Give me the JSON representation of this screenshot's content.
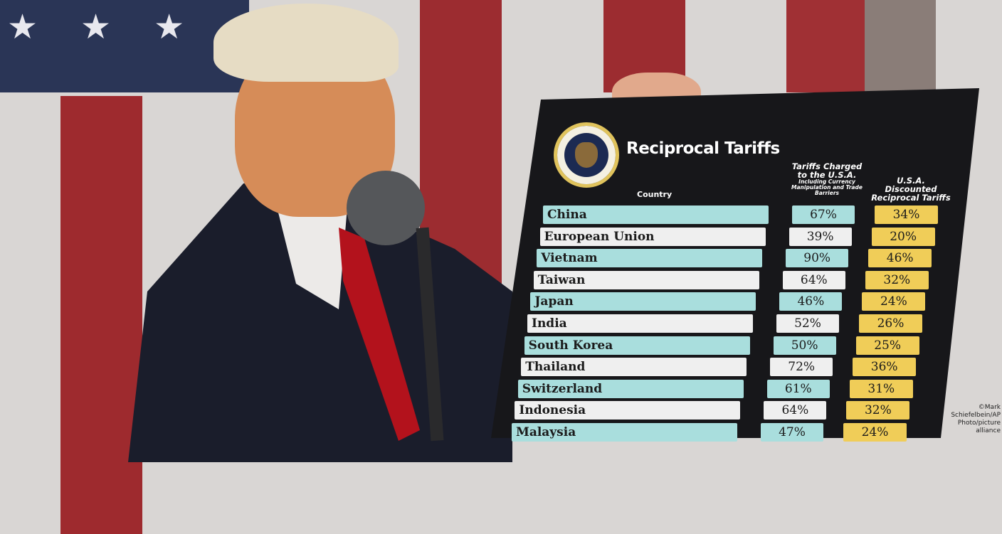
{
  "board": {
    "title": "Reciprocal Tariffs",
    "seal_text": "SEAL OF THE PRESIDENT OF THE UNITED STATES",
    "col_country": "Country",
    "col_charged": "Tariffs Charged to the U.S.A.",
    "col_charged_sub": "Including Currency Manipulation and Trade Barriers",
    "col_reciprocal": "U.S.A. Discounted Reciprocal Tariffs",
    "rows": [
      {
        "country": "China",
        "charged": "67%",
        "reciprocal": "34%"
      },
      {
        "country": "European Union",
        "charged": "39%",
        "reciprocal": "20%"
      },
      {
        "country": "Vietnam",
        "charged": "90%",
        "reciprocal": "46%"
      },
      {
        "country": "Taiwan",
        "charged": "64%",
        "reciprocal": "32%"
      },
      {
        "country": "Japan",
        "charged": "46%",
        "reciprocal": "24%"
      },
      {
        "country": "India",
        "charged": "52%",
        "reciprocal": "26%"
      },
      {
        "country": "South Korea",
        "charged": "50%",
        "reciprocal": "25%"
      },
      {
        "country": "Thailand",
        "charged": "72%",
        "reciprocal": "36%"
      },
      {
        "country": "Switzerland",
        "charged": "61%",
        "reciprocal": "31%"
      },
      {
        "country": "Indonesia",
        "charged": "64%",
        "reciprocal": "32%"
      },
      {
        "country": "Malaysia",
        "charged": "47%",
        "reciprocal": "24%"
      }
    ],
    "colors": {
      "cyan": "#a9dedd",
      "white": "#efefef",
      "yellow": "#f0cd58",
      "board": "#17171a"
    }
  },
  "credit": "©Mark Schiefelbein/AP Photo/picture alliance"
}
